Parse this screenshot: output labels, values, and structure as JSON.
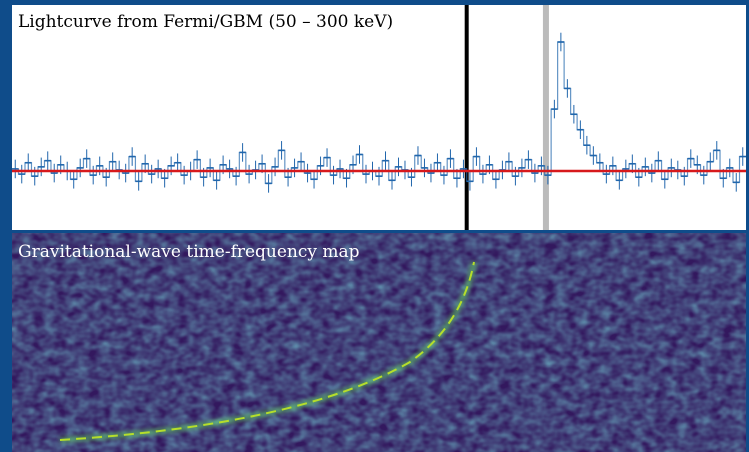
{
  "chart_data": [
    {
      "type": "step",
      "title": "Lightcurve from Fermi/GBM (50 – 300 keV)",
      "values": [
        2,
        -3,
        8,
        -5,
        4,
        10,
        -2,
        6,
        0,
        -8,
        3,
        12,
        -4,
        5,
        -6,
        9,
        1,
        -2,
        14,
        -10,
        7,
        -3,
        2,
        -7,
        5,
        8,
        -4,
        0,
        11,
        -6,
        3,
        -9,
        6,
        2,
        -5,
        18,
        -3,
        1,
        7,
        -12,
        4,
        20,
        -6,
        3,
        9,
        -2,
        -8,
        5,
        13,
        -4,
        2,
        -7,
        6,
        16,
        -3,
        0,
        -5,
        10,
        -9,
        4,
        1,
        -6,
        15,
        3,
        -2,
        8,
        -4,
        12,
        -7,
        2,
        -10,
        14,
        -3,
        6,
        -8,
        1,
        9,
        -5,
        3,
        11,
        -2,
        5,
        -4,
        60,
        125,
        80,
        55,
        40,
        25,
        15,
        8,
        -3,
        5,
        -9,
        2,
        7,
        -6,
        4,
        -2,
        10,
        -8,
        3,
        1,
        -5,
        12,
        6,
        -4,
        9,
        20,
        -7,
        3,
        -11,
        14
      ],
      "error": 9,
      "background": 0,
      "background_color": "#d7191c",
      "color": "#2166ac",
      "events": [
        {
          "x": 70,
          "color": "#000000"
        },
        {
          "x": 82.2,
          "color": "#bbbbbb"
        }
      ]
    },
    {
      "type": "spectrogram",
      "title": "Gravitational-wave time-frequency map"
    }
  ]
}
